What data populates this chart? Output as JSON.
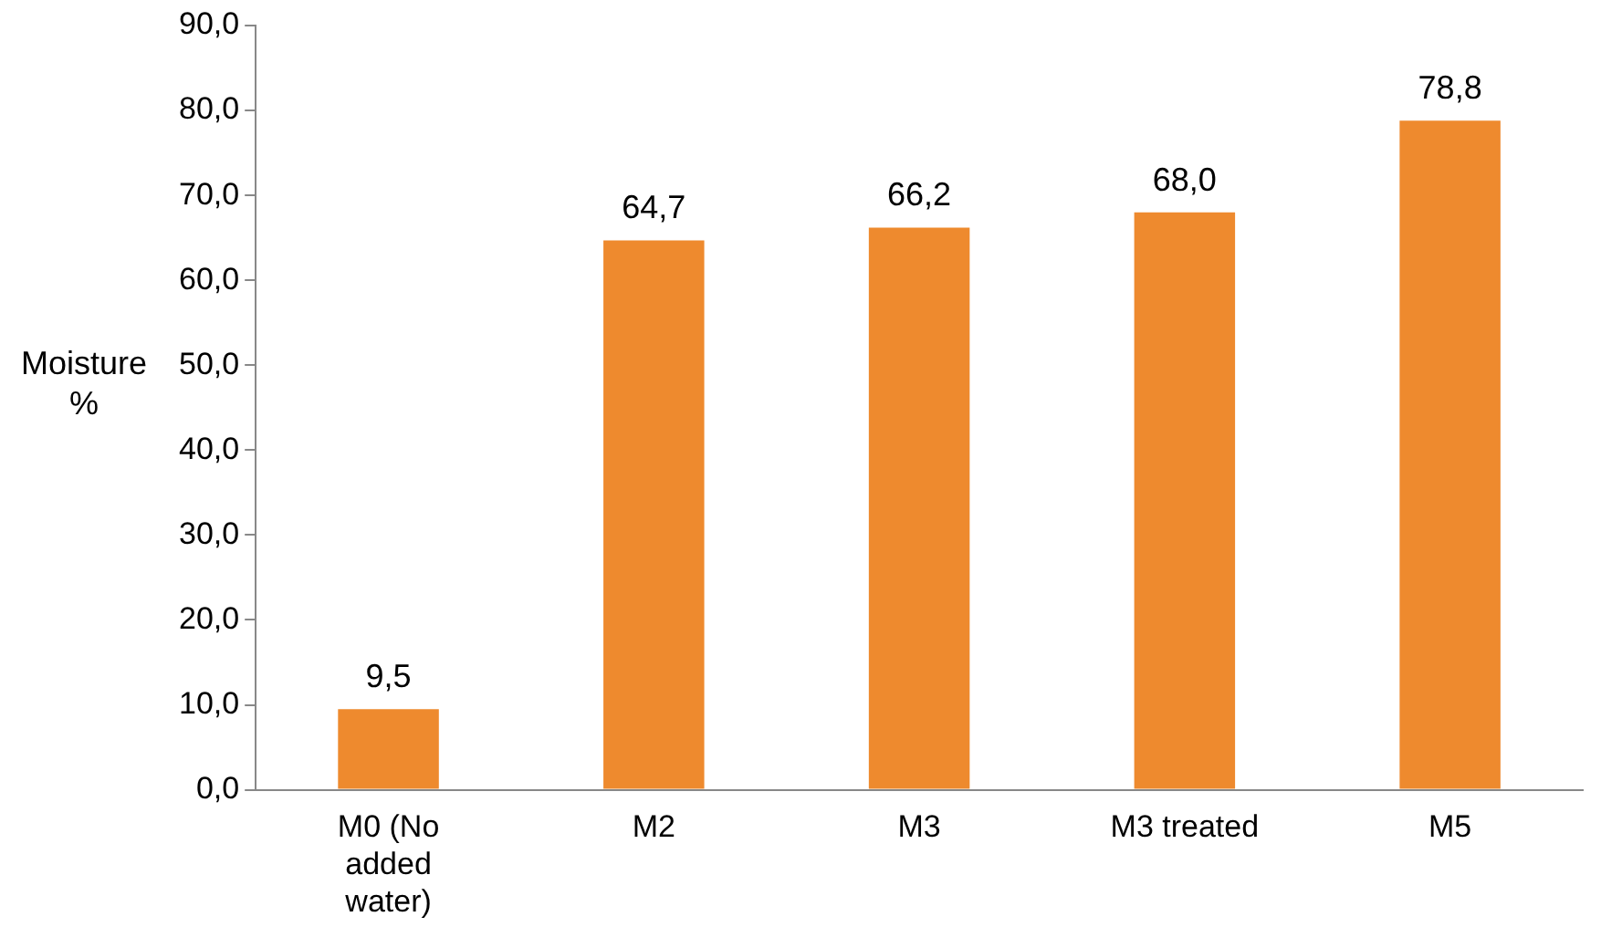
{
  "chart_data": {
    "type": "bar",
    "ylabel": "Moisture %",
    "categories": [
      "M0 (No added water)",
      "M2",
      "M3",
      "M3 treated",
      "M5"
    ],
    "values": [
      9.5,
      64.7,
      66.2,
      68.0,
      78.8
    ],
    "value_labels": [
      "9,5",
      "64,7",
      "66,2",
      "68,0",
      "78,8"
    ],
    "color": "#ee8a2e",
    "ylim": [
      0,
      90
    ],
    "yticks": [
      {
        "value": 0,
        "label": "0,0"
      },
      {
        "value": 10,
        "label": "10,0"
      },
      {
        "value": 20,
        "label": "20,0"
      },
      {
        "value": 30,
        "label": "30,0"
      },
      {
        "value": 40,
        "label": "40,0"
      },
      {
        "value": 50,
        "label": "50,0"
      },
      {
        "value": 60,
        "label": "60,0"
      },
      {
        "value": 70,
        "label": "70,0"
      },
      {
        "value": 80,
        "label": "80,0"
      },
      {
        "value": 90,
        "label": "90,0"
      }
    ],
    "grid": false,
    "legend": false
  }
}
